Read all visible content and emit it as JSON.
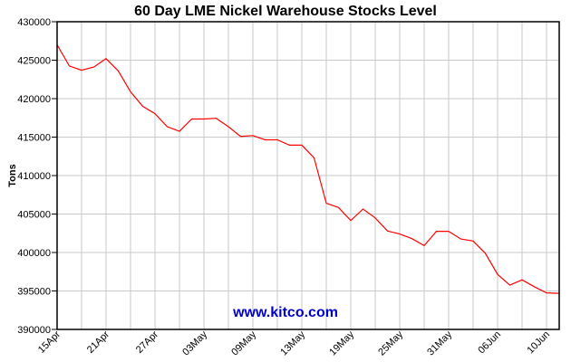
{
  "chart_data": {
    "type": "line",
    "title": "60 Day LME Nickel Warehouse Stocks Level",
    "xlabel": "",
    "ylabel": "Tons",
    "ylim": [
      390000,
      430000
    ],
    "yticks": [
      390000,
      395000,
      400000,
      405000,
      410000,
      415000,
      420000,
      425000,
      430000
    ],
    "ytick_labels": [
      "390000",
      "395000",
      "400000",
      "405000",
      "410000",
      "415000",
      "420000",
      "425000",
      "430000"
    ],
    "xtick_labels": [
      "15Apr",
      "21Apr",
      "27Apr",
      "03May",
      "09May",
      "13May",
      "19May",
      "25May",
      "31May",
      "06Jun",
      "10Jun"
    ],
    "xtick_index": [
      0,
      4,
      8,
      12,
      16,
      20,
      24,
      28,
      32,
      36,
      40
    ],
    "grid": true,
    "legend": null,
    "annotation": "www.kitco.com",
    "series": [
      {
        "name": "Nickel Warehouse Stocks",
        "color": "#ff0000",
        "values": [
          427000,
          424250,
          423700,
          424100,
          425200,
          423600,
          420900,
          419000,
          418050,
          416350,
          415750,
          417350,
          417350,
          417450,
          416350,
          415100,
          415200,
          414650,
          414650,
          413950,
          413950,
          412300,
          406400,
          405850,
          404150,
          405650,
          404500,
          402800,
          402400,
          401800,
          400900,
          402750,
          402750,
          401750,
          401500,
          399900,
          397150,
          395750,
          396450,
          395550,
          394750,
          394700
        ]
      }
    ]
  },
  "colors": {
    "line": "#ff0000",
    "grid": "#c8c8c8",
    "axis": "#000000",
    "watermark": "#0000cc"
  }
}
